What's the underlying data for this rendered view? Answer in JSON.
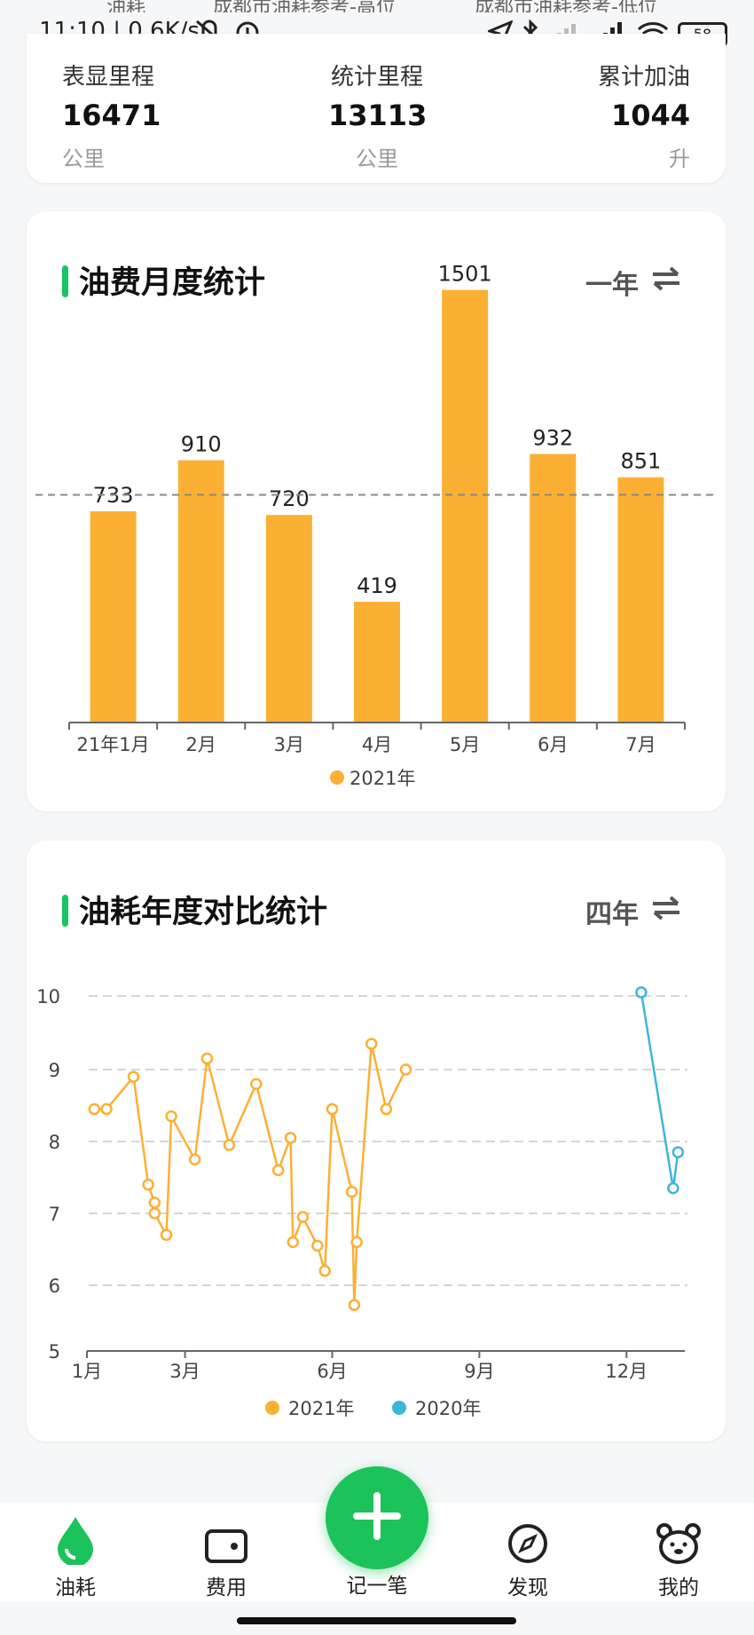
{
  "top_cut": {
    "left": "油耗",
    "mid": "成都市油耗参考-高位",
    "right": "成都市油耗参考-低位"
  },
  "status_bar": {
    "time": "11:10 | 0.6K/s",
    "battery": "58"
  },
  "summary": [
    {
      "label": "表显里程",
      "value": "16471",
      "unit": "公里"
    },
    {
      "label": "统计里程",
      "value": "13113",
      "unit": "公里"
    },
    {
      "label": "累计加油",
      "value": "1044",
      "unit": "升"
    }
  ],
  "monthly_card": {
    "title": "油费月度统计",
    "range": "一年"
  },
  "yearly_card": {
    "title": "油耗年度对比统计",
    "range": "四年"
  },
  "tabs": [
    {
      "label": "油耗",
      "icon": "drop-icon"
    },
    {
      "label": "费用",
      "icon": "wallet-icon"
    },
    {
      "label": "记一笔",
      "icon": "plus-icon"
    },
    {
      "label": "发现",
      "icon": "compass-icon"
    },
    {
      "label": "我的",
      "icon": "bear-icon"
    }
  ],
  "colors": {
    "accent": "#1bc35a",
    "bar": "#fbb034",
    "series2020": "#3bb7d9"
  },
  "chart_data": [
    {
      "type": "bar",
      "categories": [
        "21年1月",
        "2月",
        "3月",
        "4月",
        "5月",
        "6月",
        "7月"
      ],
      "series": [
        {
          "name": "2021年",
          "values": [
            733,
            910,
            720,
            419,
            1501,
            932,
            851
          ]
        }
      ],
      "data_labels": [
        "733",
        "910",
        "720",
        "419",
        "1501",
        "932",
        "851"
      ],
      "reference_line": 790,
      "ylim": [
        0,
        1540
      ],
      "legend": "bottom-center",
      "grid": false
    },
    {
      "type": "line",
      "x_ticks": [
        "1月",
        "3月",
        "6月",
        "9月",
        "12月"
      ],
      "x_tick_months": [
        1,
        3,
        6,
        9,
        12
      ],
      "y_ticks": [
        "5",
        "6",
        "7",
        "8",
        "9",
        "10"
      ],
      "ylim": [
        5,
        10.3
      ],
      "grid": true,
      "legend": "bottom-center",
      "series": [
        {
          "name": "2021年",
          "points": [
            [
              1.15,
              8.45
            ],
            [
              1.4,
              8.45
            ],
            [
              1.95,
              8.9
            ],
            [
              2.25,
              7.4
            ],
            [
              2.38,
              7.15
            ],
            [
              2.38,
              7.0
            ],
            [
              2.62,
              6.7
            ],
            [
              2.72,
              8.35
            ],
            [
              3.2,
              7.75
            ],
            [
              3.45,
              9.15
            ],
            [
              3.9,
              7.95
            ],
            [
              4.45,
              8.8
            ],
            [
              4.9,
              7.6
            ],
            [
              5.15,
              8.05
            ],
            [
              5.2,
              6.6
            ],
            [
              5.4,
              6.95
            ],
            [
              5.7,
              6.55
            ],
            [
              5.85,
              6.2
            ],
            [
              6.0,
              8.45
            ],
            [
              6.4,
              7.3
            ],
            [
              6.45,
              5.7
            ],
            [
              6.5,
              6.6
            ],
            [
              6.8,
              9.35
            ],
            [
              7.1,
              8.45
            ],
            [
              7.5,
              9.0
            ]
          ]
        },
        {
          "name": "2020年",
          "points": [
            [
              12.3,
              10.05
            ],
            [
              12.95,
              7.35
            ],
            [
              13.05,
              7.85
            ]
          ]
        }
      ]
    }
  ]
}
